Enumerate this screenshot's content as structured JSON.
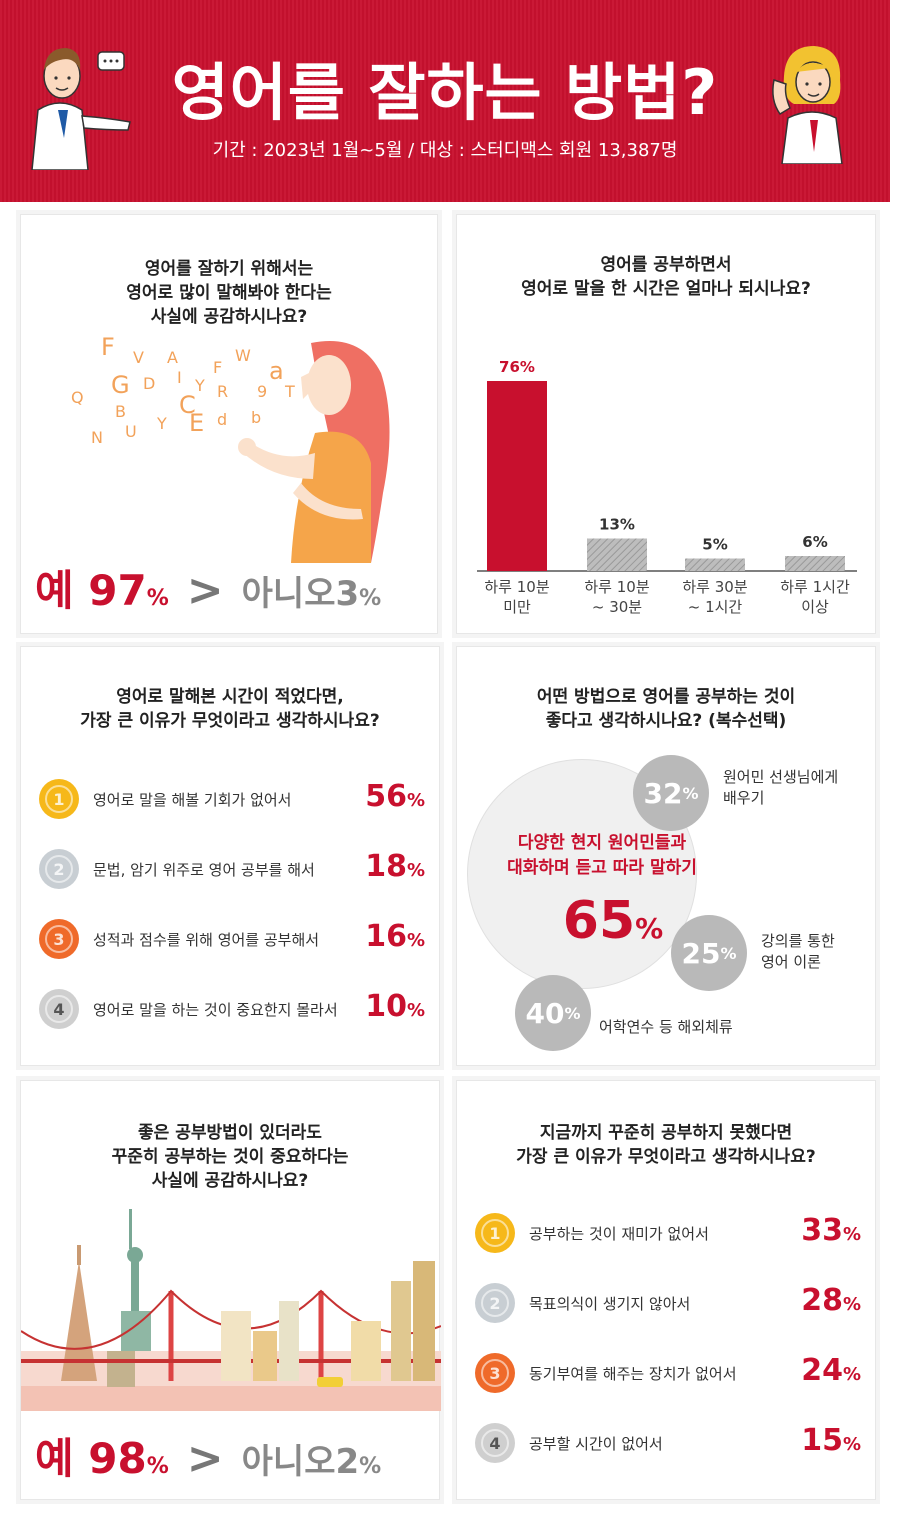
{
  "header": {
    "title": "영어를 잘하는 방법?",
    "subtitle": "기간 : 2023년 1월~5월 / 대상 : 스터디맥스 회원 13,387명"
  },
  "panel1": {
    "question": [
      "영어를 잘하기 위해서는",
      "영어로 많이 말해봐야 한다는",
      "사실에 공감하시나요?"
    ],
    "yes_label": "예",
    "yes_value": "97",
    "no_label": "아니오",
    "no_value": "3",
    "unit": "%",
    "gt": ">",
    "letters": [
      "F",
      "V",
      "A",
      "W",
      "Q",
      "G",
      "D",
      "I",
      "Y",
      "F",
      "a",
      "R",
      "9",
      "T",
      "B",
      "C",
      "b",
      "N",
      "U",
      "Y",
      "E",
      "d"
    ]
  },
  "panel2": {
    "question": [
      "영어를 공부하면서",
      "영어로 말을 한 시간은 얼마나 되시나요?"
    ]
  },
  "chart_data": {
    "type": "bar",
    "categories": [
      "하루 10분 미만",
      "하루 10분 ~ 30분",
      "하루 30분 ~ 1시간",
      "하루 1시간 이상"
    ],
    "category_lines": [
      [
        "하루 10분",
        "미만"
      ],
      [
        "하루 10분",
        "~ 30분"
      ],
      [
        "하루 30분",
        "~ 1시간"
      ],
      [
        "하루 1시간",
        "이상"
      ]
    ],
    "values": [
      76,
      13,
      5,
      6
    ],
    "labels": [
      "76%",
      "13%",
      "5%",
      "6%"
    ],
    "ylim": [
      0,
      80
    ],
    "colors": [
      "#c8102e",
      "#b5b5b5",
      "#b5b5b5",
      "#b5b5b5"
    ]
  },
  "panel3": {
    "question": [
      "영어로 말해본 시간이 적었다면,",
      "가장 큰 이유가 무엇이라고 생각하시나요?"
    ],
    "items": [
      {
        "rank": "1",
        "text": "영어로 말을 해볼 기회가 없어서",
        "value": "56"
      },
      {
        "rank": "2",
        "text": "문법, 암기 위주로 영어 공부를 해서",
        "value": "18"
      },
      {
        "rank": "3",
        "text": "성적과 점수를 위해 영어를 공부해서",
        "value": "16"
      },
      {
        "rank": "4",
        "text": "영어로 말을 하는 것이 중요한지 몰라서",
        "value": "10"
      }
    ],
    "unit": "%"
  },
  "panel4": {
    "question": [
      "어떤 방법으로 영어를 공부하는 것이",
      "좋다고 생각하시나요? (복수선택)"
    ],
    "main_text": [
      "다양한 현지 원어민들과",
      "대화하며 듣고 따라 말하기"
    ],
    "main_value": "65",
    "unit": "%",
    "items": [
      {
        "value": "32",
        "label": [
          "원어민 선생님에게",
          "배우기"
        ]
      },
      {
        "value": "25",
        "label": [
          "강의를 통한",
          "영어 이론"
        ]
      },
      {
        "value": "40",
        "label": [
          "어학연수 등 해외체류"
        ]
      }
    ]
  },
  "panel5": {
    "question": [
      "좋은 공부방법이 있더라도",
      "꾸준히 공부하는 것이 중요하다는",
      "사실에 공감하시나요?"
    ],
    "yes_label": "예",
    "yes_value": "98",
    "no_label": "아니오",
    "no_value": "2",
    "unit": "%",
    "gt": ">"
  },
  "panel6": {
    "question": [
      "지금까지 꾸준히 공부하지 못했다면",
      "가장 큰 이유가 무엇이라고 생각하시나요?"
    ],
    "items": [
      {
        "rank": "1",
        "text": "공부하는 것이 재미가 없어서",
        "value": "33"
      },
      {
        "rank": "2",
        "text": "목표의식이 생기지 않아서",
        "value": "28"
      },
      {
        "rank": "3",
        "text": "동기부여를 해주는 장치가 없어서",
        "value": "24"
      },
      {
        "rank": "4",
        "text": "공부할 시간이 없어서",
        "value": "15"
      }
    ],
    "unit": "%"
  },
  "colors": {
    "accent": "#c8102e",
    "gray": "#b5b5b5"
  }
}
